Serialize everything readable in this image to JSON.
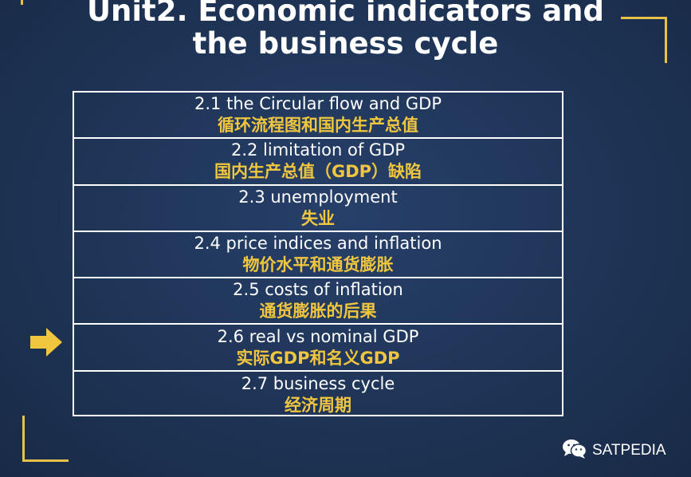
{
  "title": {
    "line1": "Unit2. Economic indicators and",
    "line2": "the business cycle"
  },
  "rows": [
    {
      "en": "2.1 the Circular flow and GDP",
      "zh": "循环流程图和国内生产总值"
    },
    {
      "en": "2.2 limitation of GDP",
      "zh": "国内生产总值（GDP）缺陷"
    },
    {
      "en": "2.3 unemployment",
      "zh": "失业"
    },
    {
      "en": "2.4 price indices and inflation",
      "zh": "物价水平和通货膨胀"
    },
    {
      "en": "2.5 costs of inflation",
      "zh": "通货膨胀的后果"
    },
    {
      "en": "2.6 real vs nominal GDP",
      "zh": "实际GDP和名义GDP"
    },
    {
      "en": "2.7 business cycle",
      "zh": "经济周期"
    }
  ],
  "pointer": {
    "icon": "right-arrow-icon",
    "current_row": 6,
    "color": "#f0c63f"
  },
  "watermark": {
    "icon": "wechat-icon",
    "text": "SATPEDIA"
  },
  "colors": {
    "background": "#1f3557",
    "accent": "#e6c24a",
    "chinese_text": "#f0c63f"
  }
}
